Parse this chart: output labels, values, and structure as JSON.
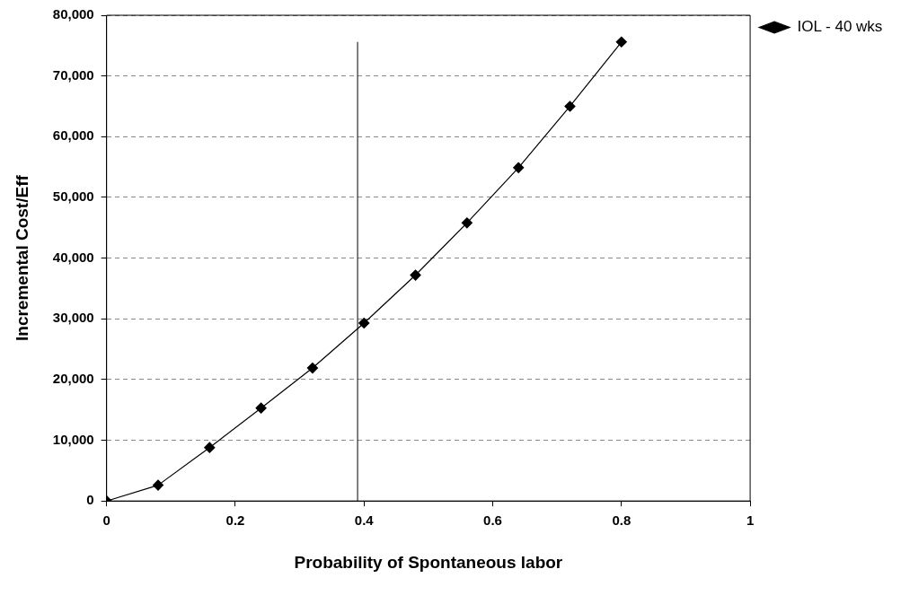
{
  "chart_data": {
    "type": "line",
    "xlabel": "Probability of Spontaneous labor",
    "ylabel": "Incremental Cost/Eff",
    "x": [
      0,
      0.08,
      0.16,
      0.24,
      0.32,
      0.4,
      0.48,
      0.56,
      0.64,
      0.72,
      0.8
    ],
    "series": [
      {
        "name": "IOL - 40 wks",
        "color": "#000000",
        "values": [
          0,
          2600,
          8800,
          15300,
          21900,
          29300,
          37200,
          45800,
          54900,
          65000,
          75600
        ]
      }
    ],
    "xlim": [
      0,
      1
    ],
    "xticks": [
      0,
      0.2,
      0.4,
      0.6,
      0.8,
      1
    ],
    "ylim": [
      0,
      80000
    ],
    "yticks": [
      {
        "value": 0,
        "label": "0"
      },
      {
        "value": 10000,
        "label": "10,000"
      },
      {
        "value": 20000,
        "label": "20,000"
      },
      {
        "value": 30000,
        "label": "30,000"
      },
      {
        "value": 40000,
        "label": "40,000"
      },
      {
        "value": 50000,
        "label": "50,000"
      },
      {
        "value": 60000,
        "label": "60,000"
      },
      {
        "value": 70000,
        "label": "70,000"
      },
      {
        "value": 80000,
        "label": "80,000"
      }
    ],
    "ref_lines": [
      {
        "axis": "x",
        "value": 0.39,
        "color": "#000000"
      }
    ],
    "grid": "y",
    "legend": "top right",
    "marker": "diamond",
    "line_style": "solid"
  }
}
